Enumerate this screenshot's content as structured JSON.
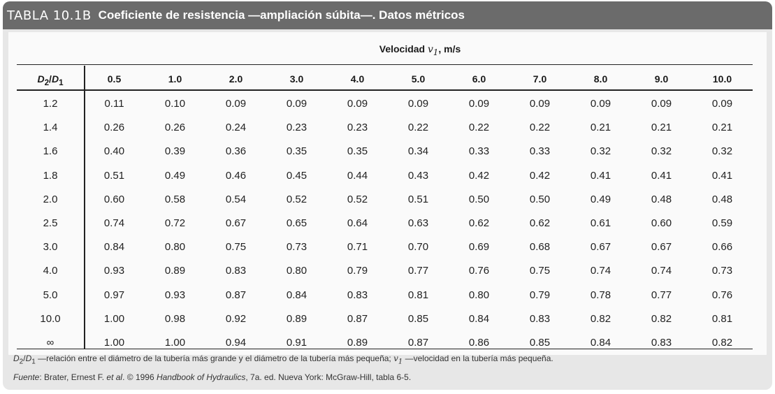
{
  "title": {
    "label": "TABLA 10.1B",
    "text": "Coeficiente de resistencia —ampliación súbita—. Datos métricos"
  },
  "table": {
    "velocity_label": "Velocidad",
    "velocity_symbol": "v",
    "velocity_sub": "1",
    "velocity_unit": ", m/s",
    "ratio_header": {
      "d2": "D",
      "d2_sub": "2",
      "slash": "/",
      "d1": "D",
      "d1_sub": "1"
    },
    "velocities": [
      "0.5",
      "1.0",
      "2.0",
      "3.0",
      "4.0",
      "5.0",
      "6.0",
      "7.0",
      "8.0",
      "9.0",
      "10.0"
    ],
    "rows": [
      {
        "ratio": "1.2",
        "values": [
          "0.11",
          "0.10",
          "0.09",
          "0.09",
          "0.09",
          "0.09",
          "0.09",
          "0.09",
          "0.09",
          "0.09",
          "0.09"
        ]
      },
      {
        "ratio": "1.4",
        "values": [
          "0.26",
          "0.26",
          "0.24",
          "0.23",
          "0.23",
          "0.22",
          "0.22",
          "0.22",
          "0.21",
          "0.21",
          "0.21"
        ]
      },
      {
        "ratio": "1.6",
        "values": [
          "0.40",
          "0.39",
          "0.36",
          "0.35",
          "0.35",
          "0.34",
          "0.33",
          "0.33",
          "0.32",
          "0.32",
          "0.32"
        ]
      },
      {
        "ratio": "1.8",
        "values": [
          "0.51",
          "0.49",
          "0.46",
          "0.45",
          "0.44",
          "0.43",
          "0.42",
          "0.42",
          "0.41",
          "0.41",
          "0.41"
        ]
      },
      {
        "ratio": "2.0",
        "values": [
          "0.60",
          "0.58",
          "0.54",
          "0.52",
          "0.52",
          "0.51",
          "0.50",
          "0.50",
          "0.49",
          "0.48",
          "0.48"
        ]
      },
      {
        "ratio": "2.5",
        "values": [
          "0.74",
          "0.72",
          "0.67",
          "0.65",
          "0.64",
          "0.63",
          "0.62",
          "0.62",
          "0.61",
          "0.60",
          "0.59"
        ]
      },
      {
        "ratio": "3.0",
        "values": [
          "0.84",
          "0.80",
          "0.75",
          "0.73",
          "0.71",
          "0.70",
          "0.69",
          "0.68",
          "0.67",
          "0.67",
          "0.66"
        ]
      },
      {
        "ratio": "4.0",
        "values": [
          "0.93",
          "0.89",
          "0.83",
          "0.80",
          "0.79",
          "0.77",
          "0.76",
          "0.75",
          "0.74",
          "0.74",
          "0.73"
        ]
      },
      {
        "ratio": "5.0",
        "values": [
          "0.97",
          "0.93",
          "0.87",
          "0.84",
          "0.83",
          "0.81",
          "0.80",
          "0.79",
          "0.78",
          "0.77",
          "0.76"
        ]
      },
      {
        "ratio": "10.0",
        "values": [
          "1.00",
          "0.98",
          "0.92",
          "0.89",
          "0.87",
          "0.85",
          "0.84",
          "0.83",
          "0.82",
          "0.82",
          "0.81"
        ]
      },
      {
        "ratio": "∞",
        "values": [
          "1.00",
          "1.00",
          "0.94",
          "0.91",
          "0.89",
          "0.87",
          "0.86",
          "0.85",
          "0.84",
          "0.83",
          "0.82"
        ]
      }
    ]
  },
  "notes": {
    "definition_d2": "D",
    "definition_d2_sub": "2",
    "definition_d1": "D",
    "definition_d1_sub": "1",
    "definition_text": " —relación entre el diámetro de la tubería más grande y el diámetro de la tubería más pequeña; ",
    "definition_v": "v",
    "definition_v_sub": "1",
    "definition_v_text": " —velocidad en la tubería más pequeña.",
    "source_label": "Fuente",
    "source_text_1": ": Brater, Ernest F. ",
    "source_etal": "et al",
    "source_text_2": ". © 1996 ",
    "source_book": "Handbook of Hydraulics",
    "source_text_3": ", 7a. ed. Nueva York: McGraw-Hill, tabla 6-5."
  },
  "colors": {
    "title_bar": "#6b6b6b",
    "card_background": "#e7e7e7",
    "panel_background": "#fafafa",
    "rule": "#222222"
  }
}
